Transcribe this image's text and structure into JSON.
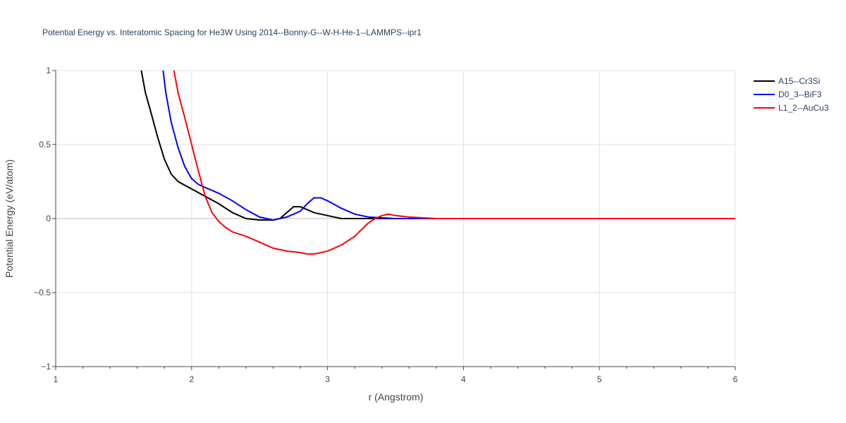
{
  "chart_data": {
    "type": "line",
    "title": "Potential Energy vs. Interatomic Spacing for He3W Using 2014--Bonny-G--W-H-He-1--LAMMPS--ipr1",
    "xlabel": "r (Angstrom)",
    "ylabel": "Potential Energy (eV/atom)",
    "xlim": [
      1,
      6
    ],
    "ylim": [
      -1,
      1
    ],
    "xticks": [
      1,
      2,
      3,
      4,
      5,
      6
    ],
    "xtick_labels": [
      "1",
      "2",
      "3",
      "4",
      "5",
      "6"
    ],
    "yticks": [
      -1,
      -0.5,
      0,
      0.5,
      1
    ],
    "ytick_labels": [
      "−1",
      "−0.5",
      "0",
      "0.5",
      "1"
    ],
    "grid": true,
    "legend_position": "top-right",
    "series": [
      {
        "name": "A15--Cr3Si",
        "color": "#000000",
        "x": [
          1.63,
          1.66,
          1.7,
          1.75,
          1.8,
          1.85,
          1.9,
          2.0,
          2.1,
          2.2,
          2.3,
          2.4,
          2.5,
          2.6,
          2.65,
          2.7,
          2.75,
          2.8,
          2.9,
          3.0,
          3.1,
          3.2,
          3.5,
          4.0,
          5.0,
          6.0
        ],
        "y": [
          1.0,
          0.85,
          0.72,
          0.55,
          0.4,
          0.3,
          0.25,
          0.2,
          0.15,
          0.1,
          0.04,
          0.0,
          -0.01,
          -0.01,
          0.0,
          0.04,
          0.08,
          0.08,
          0.04,
          0.02,
          0.0,
          0.0,
          0.0,
          0.0,
          0.0,
          0.0
        ]
      },
      {
        "name": "D0_3--BiF3",
        "color": "#0000ff",
        "x": [
          1.79,
          1.81,
          1.85,
          1.9,
          1.95,
          2.0,
          2.05,
          2.1,
          2.2,
          2.3,
          2.4,
          2.5,
          2.55,
          2.6,
          2.65,
          2.7,
          2.8,
          2.85,
          2.9,
          2.95,
          3.0,
          3.1,
          3.2,
          3.3,
          3.5,
          4.0,
          5.0,
          6.0
        ],
        "y": [
          1.0,
          0.85,
          0.65,
          0.48,
          0.35,
          0.27,
          0.23,
          0.21,
          0.17,
          0.12,
          0.06,
          0.01,
          0.0,
          -0.01,
          0.0,
          0.01,
          0.05,
          0.1,
          0.14,
          0.14,
          0.12,
          0.07,
          0.03,
          0.01,
          0.0,
          0.0,
          0.0,
          0.0
        ]
      },
      {
        "name": "L1_2--AuCu3",
        "color": "#ff0000",
        "x": [
          1.87,
          1.9,
          1.95,
          2.0,
          2.05,
          2.1,
          2.15,
          2.2,
          2.25,
          2.3,
          2.4,
          2.5,
          2.6,
          2.7,
          2.8,
          2.85,
          2.9,
          3.0,
          3.1,
          3.2,
          3.3,
          3.35,
          3.4,
          3.45,
          3.5,
          3.6,
          3.8,
          4.0,
          5.0,
          6.0
        ],
        "y": [
          1.0,
          0.85,
          0.68,
          0.5,
          0.32,
          0.15,
          0.04,
          -0.02,
          -0.06,
          -0.09,
          -0.12,
          -0.16,
          -0.2,
          -0.22,
          -0.23,
          -0.24,
          -0.24,
          -0.22,
          -0.18,
          -0.12,
          -0.03,
          0.0,
          0.02,
          0.03,
          0.02,
          0.01,
          0.0,
          0.0,
          0.0,
          0.0
        ]
      }
    ]
  }
}
